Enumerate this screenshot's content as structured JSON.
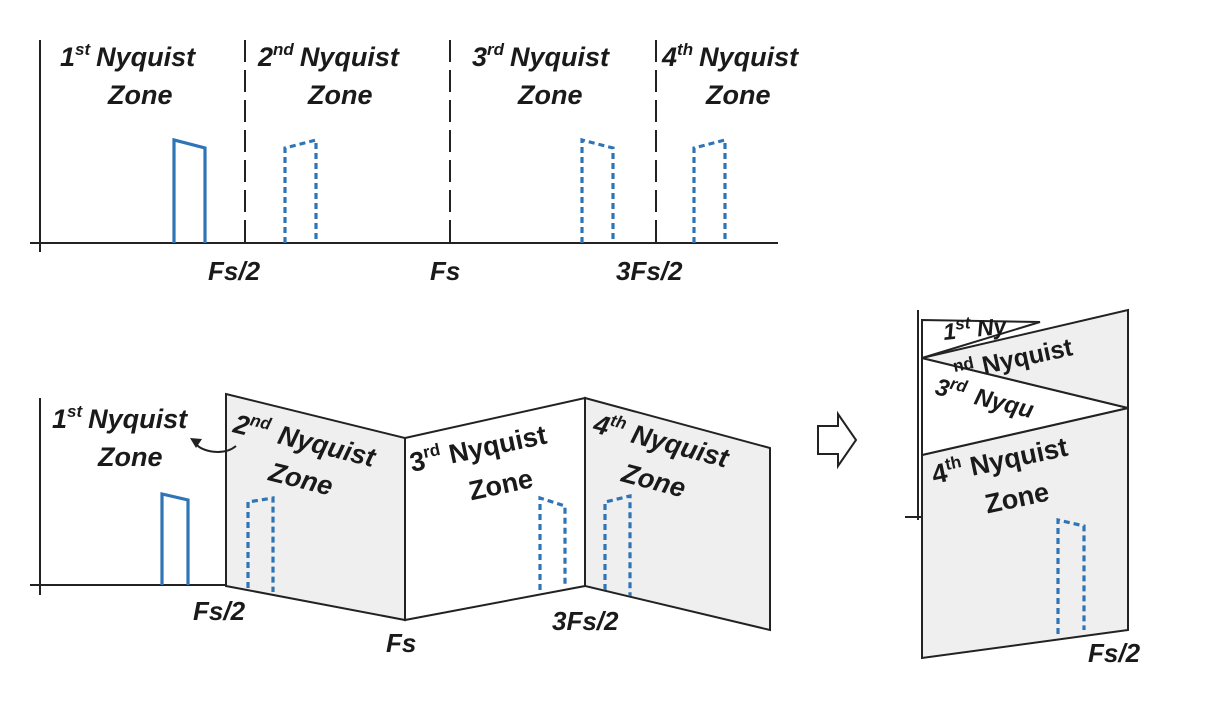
{
  "top": {
    "zones": [
      {
        "ordinal": "1",
        "sup": "st",
        "word": "Nyquist",
        "zone": "Zone"
      },
      {
        "ordinal": "2",
        "sup": "nd",
        "word": "Nyquist",
        "zone": "Zone"
      },
      {
        "ordinal": "3",
        "sup": "rd",
        "word": "Nyquist",
        "zone": "Zone"
      },
      {
        "ordinal": "4",
        "sup": "th",
        "word": "Nyquist",
        "zone": "Zone"
      }
    ],
    "ticks": [
      "Fs/2",
      "Fs",
      "3Fs/2"
    ]
  },
  "folded": {
    "zones": [
      {
        "ordinal": "1",
        "sup": "st",
        "word": "Nyquist",
        "zone": "Zone"
      },
      {
        "ordinal": "2",
        "sup": "nd",
        "word": "Nyquist",
        "zone": "Zone"
      },
      {
        "ordinal": "3",
        "sup": "rd",
        "word": "Nyquist",
        "zone": "Zone"
      },
      {
        "ordinal": "4",
        "sup": "th",
        "word": "Nyquist",
        "zone": "Zone"
      }
    ],
    "ticks": [
      "Fs/2",
      "Fs",
      "3Fs/2"
    ]
  },
  "stacked": {
    "labels": [
      "1",
      "st",
      "Ny",
      "nd",
      "Nyquist",
      "3",
      "rd",
      "Nyqu",
      "4",
      "th",
      "Nyquist",
      "Zone"
    ],
    "tick": "Fs/2"
  },
  "colors": {
    "signal": "#2f74b5",
    "panel": "#efefef"
  }
}
